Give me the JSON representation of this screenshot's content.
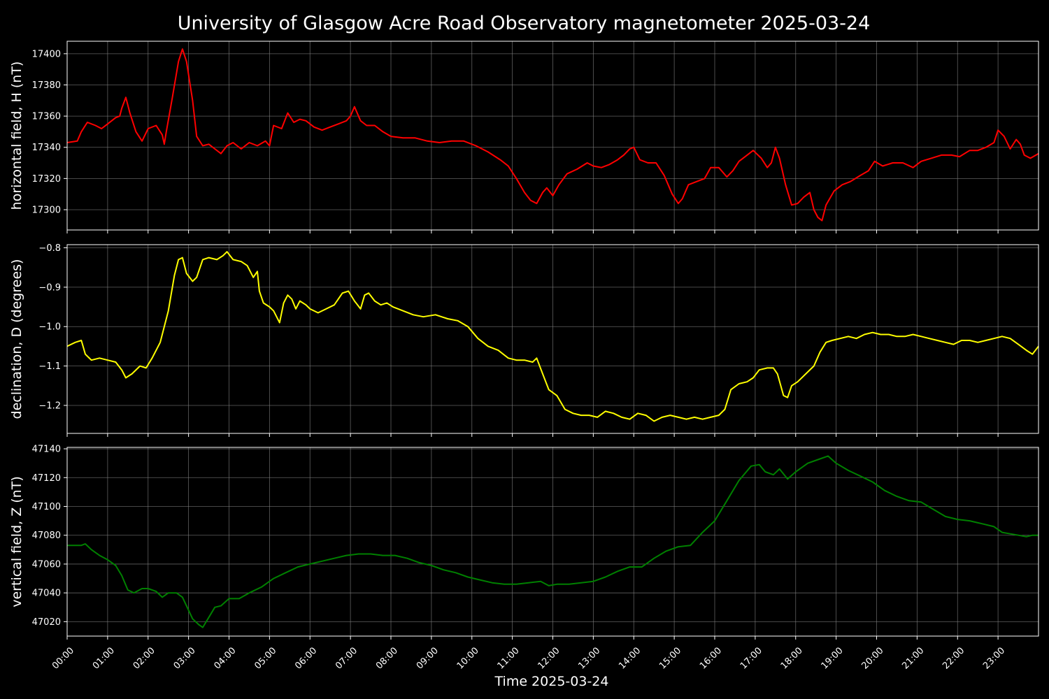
{
  "chart_data": {
    "type": "line",
    "title": "University of Glasgow Acre Road Observatory magnetometer 2025-03-24",
    "xlabel": "Time 2025-03-24",
    "x_tick_labels": [
      "00:00",
      "01:00",
      "02:00",
      "03:00",
      "04:00",
      "05:00",
      "06:00",
      "07:00",
      "08:00",
      "09:00",
      "10:00",
      "11:00",
      "12:00",
      "13:00",
      "14:00",
      "15:00",
      "16:00",
      "17:00",
      "18:00",
      "19:00",
      "20:00",
      "21:00",
      "22:00",
      "23:00"
    ],
    "xlim_hours": [
      0,
      24
    ],
    "grid": true,
    "panels": [
      {
        "ylabel": "horizontal field, H (nT)",
        "color": "#ff0000",
        "ylim": [
          17287,
          17408
        ],
        "yticks": [
          17300,
          17320,
          17340,
          17360,
          17380,
          17400
        ],
        "ytick_labels": [
          "17300",
          "17320",
          "17340",
          "17360",
          "17380",
          "17400"
        ],
        "x": [
          0.0,
          0.25,
          0.35,
          0.5,
          0.7,
          0.85,
          1.0,
          1.2,
          1.3,
          1.35,
          1.45,
          1.55,
          1.7,
          1.85,
          2.0,
          2.2,
          2.35,
          2.4,
          2.45,
          2.6,
          2.75,
          2.85,
          2.95,
          3.1,
          3.2,
          3.35,
          3.5,
          3.65,
          3.8,
          3.95,
          4.1,
          4.3,
          4.5,
          4.7,
          4.9,
          5.0,
          5.1,
          5.3,
          5.45,
          5.6,
          5.75,
          5.9,
          6.1,
          6.3,
          6.5,
          6.7,
          6.9,
          7.0,
          7.1,
          7.25,
          7.4,
          7.6,
          7.8,
          8.0,
          8.3,
          8.6,
          8.9,
          9.2,
          9.5,
          9.8,
          10.1,
          10.4,
          10.7,
          10.9,
          11.1,
          11.3,
          11.45,
          11.6,
          11.75,
          11.85,
          12.0,
          12.15,
          12.35,
          12.6,
          12.85,
          13.0,
          13.2,
          13.4,
          13.6,
          13.75,
          13.9,
          14.0,
          14.15,
          14.35,
          14.55,
          14.75,
          14.95,
          15.1,
          15.2,
          15.35,
          15.55,
          15.75,
          15.9,
          16.1,
          16.3,
          16.45,
          16.6,
          16.8,
          16.95,
          17.15,
          17.3,
          17.4,
          17.5,
          17.6,
          17.75,
          17.9,
          18.05,
          18.2,
          18.35,
          18.45,
          18.55,
          18.65,
          18.75,
          18.95,
          19.15,
          19.35,
          19.6,
          19.8,
          19.95,
          20.15,
          20.4,
          20.65,
          20.9,
          21.1,
          21.35,
          21.6,
          21.85,
          22.05,
          22.3,
          22.5,
          22.7,
          22.9,
          23.0,
          23.15,
          23.3,
          23.45,
          23.55,
          23.65,
          23.8,
          24.0
        ],
        "values": [
          17343,
          17344,
          17350,
          17356,
          17354,
          17352,
          17355,
          17359,
          17360,
          17365,
          17372,
          17362,
          17350,
          17344,
          17352,
          17354,
          17348,
          17342,
          17350,
          17372,
          17395,
          17403,
          17395,
          17370,
          17347,
          17341,
          17342,
          17339,
          17336,
          17341,
          17343,
          17339,
          17343,
          17341,
          17344,
          17341,
          17354,
          17352,
          17362,
          17356,
          17358,
          17357,
          17353,
          17351,
          17353,
          17355,
          17357,
          17360,
          17366,
          17357,
          17354,
          17354,
          17350,
          17347,
          17346,
          17346,
          17344,
          17343,
          17344,
          17344,
          17341,
          17337,
          17332,
          17328,
          17320,
          17311,
          17306,
          17304,
          17311,
          17314,
          17309,
          17316,
          17323,
          17326,
          17330,
          17328,
          17327,
          17329,
          17332,
          17335,
          17339,
          17340,
          17332,
          17330,
          17330,
          17322,
          17310,
          17304,
          17307,
          17316,
          17318,
          17320,
          17327,
          17327,
          17321,
          17325,
          17331,
          17335,
          17338,
          17333,
          17327,
          17330,
          17340,
          17333,
          17316,
          17303,
          17304,
          17308,
          17311,
          17300,
          17295,
          17293,
          17303,
          17312,
          17316,
          17318,
          17322,
          17325,
          17331,
          17328,
          17330,
          17330,
          17327,
          17331,
          17333,
          17335,
          17335,
          17334,
          17338,
          17338,
          17340,
          17343,
          17351,
          17347,
          17339,
          17345,
          17342,
          17335,
          17333,
          17336
        ]
      },
      {
        "ylabel": "declination, D (degrees)",
        "color": "#ffff00",
        "ylim": [
          -1.271,
          -0.792
        ],
        "yticks": [
          -1.2,
          -1.1,
          -1.0,
          -0.9,
          -0.8
        ],
        "ytick_labels": [
          "−1.2",
          "−1.1",
          "−1.0",
          "−0.9",
          "−0.8"
        ],
        "x": [
          0.0,
          0.2,
          0.35,
          0.45,
          0.6,
          0.8,
          1.0,
          1.2,
          1.35,
          1.45,
          1.6,
          1.8,
          1.95,
          2.1,
          2.3,
          2.5,
          2.65,
          2.75,
          2.85,
          2.95,
          3.1,
          3.2,
          3.35,
          3.5,
          3.7,
          3.85,
          3.95,
          4.1,
          4.3,
          4.45,
          4.6,
          4.7,
          4.75,
          4.85,
          5.0,
          5.1,
          5.25,
          5.35,
          5.45,
          5.55,
          5.65,
          5.75,
          5.9,
          6.0,
          6.2,
          6.4,
          6.6,
          6.8,
          6.95,
          7.1,
          7.25,
          7.35,
          7.45,
          7.6,
          7.75,
          7.9,
          8.05,
          8.3,
          8.55,
          8.8,
          9.1,
          9.4,
          9.65,
          9.9,
          10.15,
          10.4,
          10.65,
          10.9,
          11.1,
          11.3,
          11.5,
          11.6,
          11.75,
          11.9,
          12.1,
          12.3,
          12.5,
          12.7,
          12.9,
          13.1,
          13.3,
          13.5,
          13.7,
          13.9,
          14.1,
          14.3,
          14.5,
          14.7,
          14.9,
          15.1,
          15.3,
          15.5,
          15.7,
          15.9,
          16.1,
          16.25,
          16.4,
          16.6,
          16.8,
          16.95,
          17.1,
          17.3,
          17.45,
          17.55,
          17.7,
          17.8,
          17.9,
          18.05,
          18.25,
          18.45,
          18.6,
          18.75,
          18.9,
          19.1,
          19.3,
          19.5,
          19.7,
          19.9,
          20.1,
          20.3,
          20.5,
          20.7,
          20.9,
          21.1,
          21.3,
          21.5,
          21.7,
          21.9,
          22.1,
          22.3,
          22.5,
          22.7,
          22.9,
          23.1,
          23.3,
          23.5,
          23.7,
          23.85,
          24.0
        ],
        "values": [
          -1.05,
          -1.04,
          -1.035,
          -1.07,
          -1.085,
          -1.08,
          -1.085,
          -1.09,
          -1.11,
          -1.13,
          -1.12,
          -1.1,
          -1.105,
          -1.08,
          -1.04,
          -0.96,
          -0.87,
          -0.83,
          -0.825,
          -0.865,
          -0.885,
          -0.875,
          -0.83,
          -0.825,
          -0.83,
          -0.82,
          -0.81,
          -0.83,
          -0.835,
          -0.845,
          -0.875,
          -0.86,
          -0.91,
          -0.94,
          -0.95,
          -0.96,
          -0.99,
          -0.94,
          -0.92,
          -0.93,
          -0.955,
          -0.935,
          -0.945,
          -0.955,
          -0.965,
          -0.955,
          -0.945,
          -0.915,
          -0.91,
          -0.935,
          -0.955,
          -0.92,
          -0.915,
          -0.935,
          -0.945,
          -0.94,
          -0.95,
          -0.96,
          -0.97,
          -0.975,
          -0.97,
          -0.98,
          -0.985,
          -1.0,
          -1.03,
          -1.05,
          -1.06,
          -1.08,
          -1.085,
          -1.085,
          -1.09,
          -1.08,
          -1.12,
          -1.16,
          -1.175,
          -1.21,
          -1.22,
          -1.225,
          -1.225,
          -1.23,
          -1.215,
          -1.22,
          -1.23,
          -1.235,
          -1.22,
          -1.225,
          -1.24,
          -1.23,
          -1.225,
          -1.23,
          -1.235,
          -1.23,
          -1.235,
          -1.23,
          -1.225,
          -1.21,
          -1.16,
          -1.145,
          -1.14,
          -1.13,
          -1.11,
          -1.105,
          -1.105,
          -1.12,
          -1.175,
          -1.18,
          -1.15,
          -1.14,
          -1.12,
          -1.1,
          -1.065,
          -1.04,
          -1.035,
          -1.03,
          -1.025,
          -1.03,
          -1.02,
          -1.015,
          -1.02,
          -1.02,
          -1.025,
          -1.025,
          -1.02,
          -1.025,
          -1.03,
          -1.035,
          -1.04,
          -1.045,
          -1.035,
          -1.035,
          -1.04,
          -1.035,
          -1.03,
          -1.025,
          -1.03,
          -1.045,
          -1.06,
          -1.07,
          -1.05
        ]
      },
      {
        "ylabel": "vertical field, Z (nT)",
        "color": "#008000",
        "ylim": [
          47010,
          47141
        ],
        "yticks": [
          47020,
          47040,
          47060,
          47080,
          47100,
          47120,
          47140
        ],
        "ytick_labels": [
          "47020",
          "47040",
          "47060",
          "47080",
          "47100",
          "47120",
          "47140"
        ],
        "x": [
          0.0,
          0.2,
          0.35,
          0.45,
          0.6,
          0.8,
          1.0,
          1.2,
          1.35,
          1.5,
          1.65,
          1.85,
          2.0,
          2.2,
          2.35,
          2.5,
          2.7,
          2.85,
          3.0,
          3.1,
          3.25,
          3.35,
          3.5,
          3.65,
          3.8,
          4.0,
          4.25,
          4.5,
          4.8,
          5.1,
          5.4,
          5.7,
          6.0,
          6.3,
          6.6,
          6.9,
          7.2,
          7.5,
          7.8,
          8.1,
          8.4,
          8.7,
          9.0,
          9.3,
          9.6,
          9.9,
          10.2,
          10.5,
          10.8,
          11.1,
          11.4,
          11.7,
          11.9,
          12.1,
          12.4,
          12.7,
          13.0,
          13.3,
          13.6,
          13.9,
          14.2,
          14.5,
          14.8,
          15.1,
          15.4,
          15.7,
          16.0,
          16.3,
          16.6,
          16.9,
          17.1,
          17.25,
          17.45,
          17.6,
          17.8,
          18.0,
          18.3,
          18.6,
          18.8,
          19.0,
          19.3,
          19.6,
          19.9,
          20.2,
          20.5,
          20.8,
          21.1,
          21.4,
          21.7,
          22.0,
          22.3,
          22.6,
          22.9,
          23.1,
          23.3,
          23.5,
          23.7,
          23.85,
          24.0
        ],
        "values": [
          47073,
          47073,
          47073,
          47074,
          47070,
          47066,
          47063,
          47059,
          47052,
          47042,
          47040,
          47043,
          47043,
          47041,
          47037,
          47040,
          47040,
          47037,
          47028,
          47022,
          47018,
          47016,
          47023,
          47030,
          47031,
          47036,
          47036,
          47040,
          47044,
          47050,
          47054,
          47058,
          47060,
          47062,
          47064,
          47066,
          47067,
          47067,
          47066,
          47066,
          47064,
          47061,
          47059,
          47056,
          47054,
          47051,
          47049,
          47047,
          47046,
          47046,
          47047,
          47048,
          47045,
          47046,
          47046,
          47047,
          47048,
          47051,
          47055,
          47058,
          47058,
          47064,
          47069,
          47072,
          47073,
          47082,
          47090,
          47104,
          47118,
          47128,
          47129,
          47124,
          47122,
          47126,
          47119,
          47124,
          47130,
          47133,
          47135,
          47130,
          47125,
          47121,
          47117,
          47111,
          47107,
          47104,
          47103,
          47098,
          47093,
          47091,
          47090,
          47088,
          47086,
          47082,
          47081,
          47080,
          47079,
          47080,
          47080
        ]
      }
    ]
  }
}
